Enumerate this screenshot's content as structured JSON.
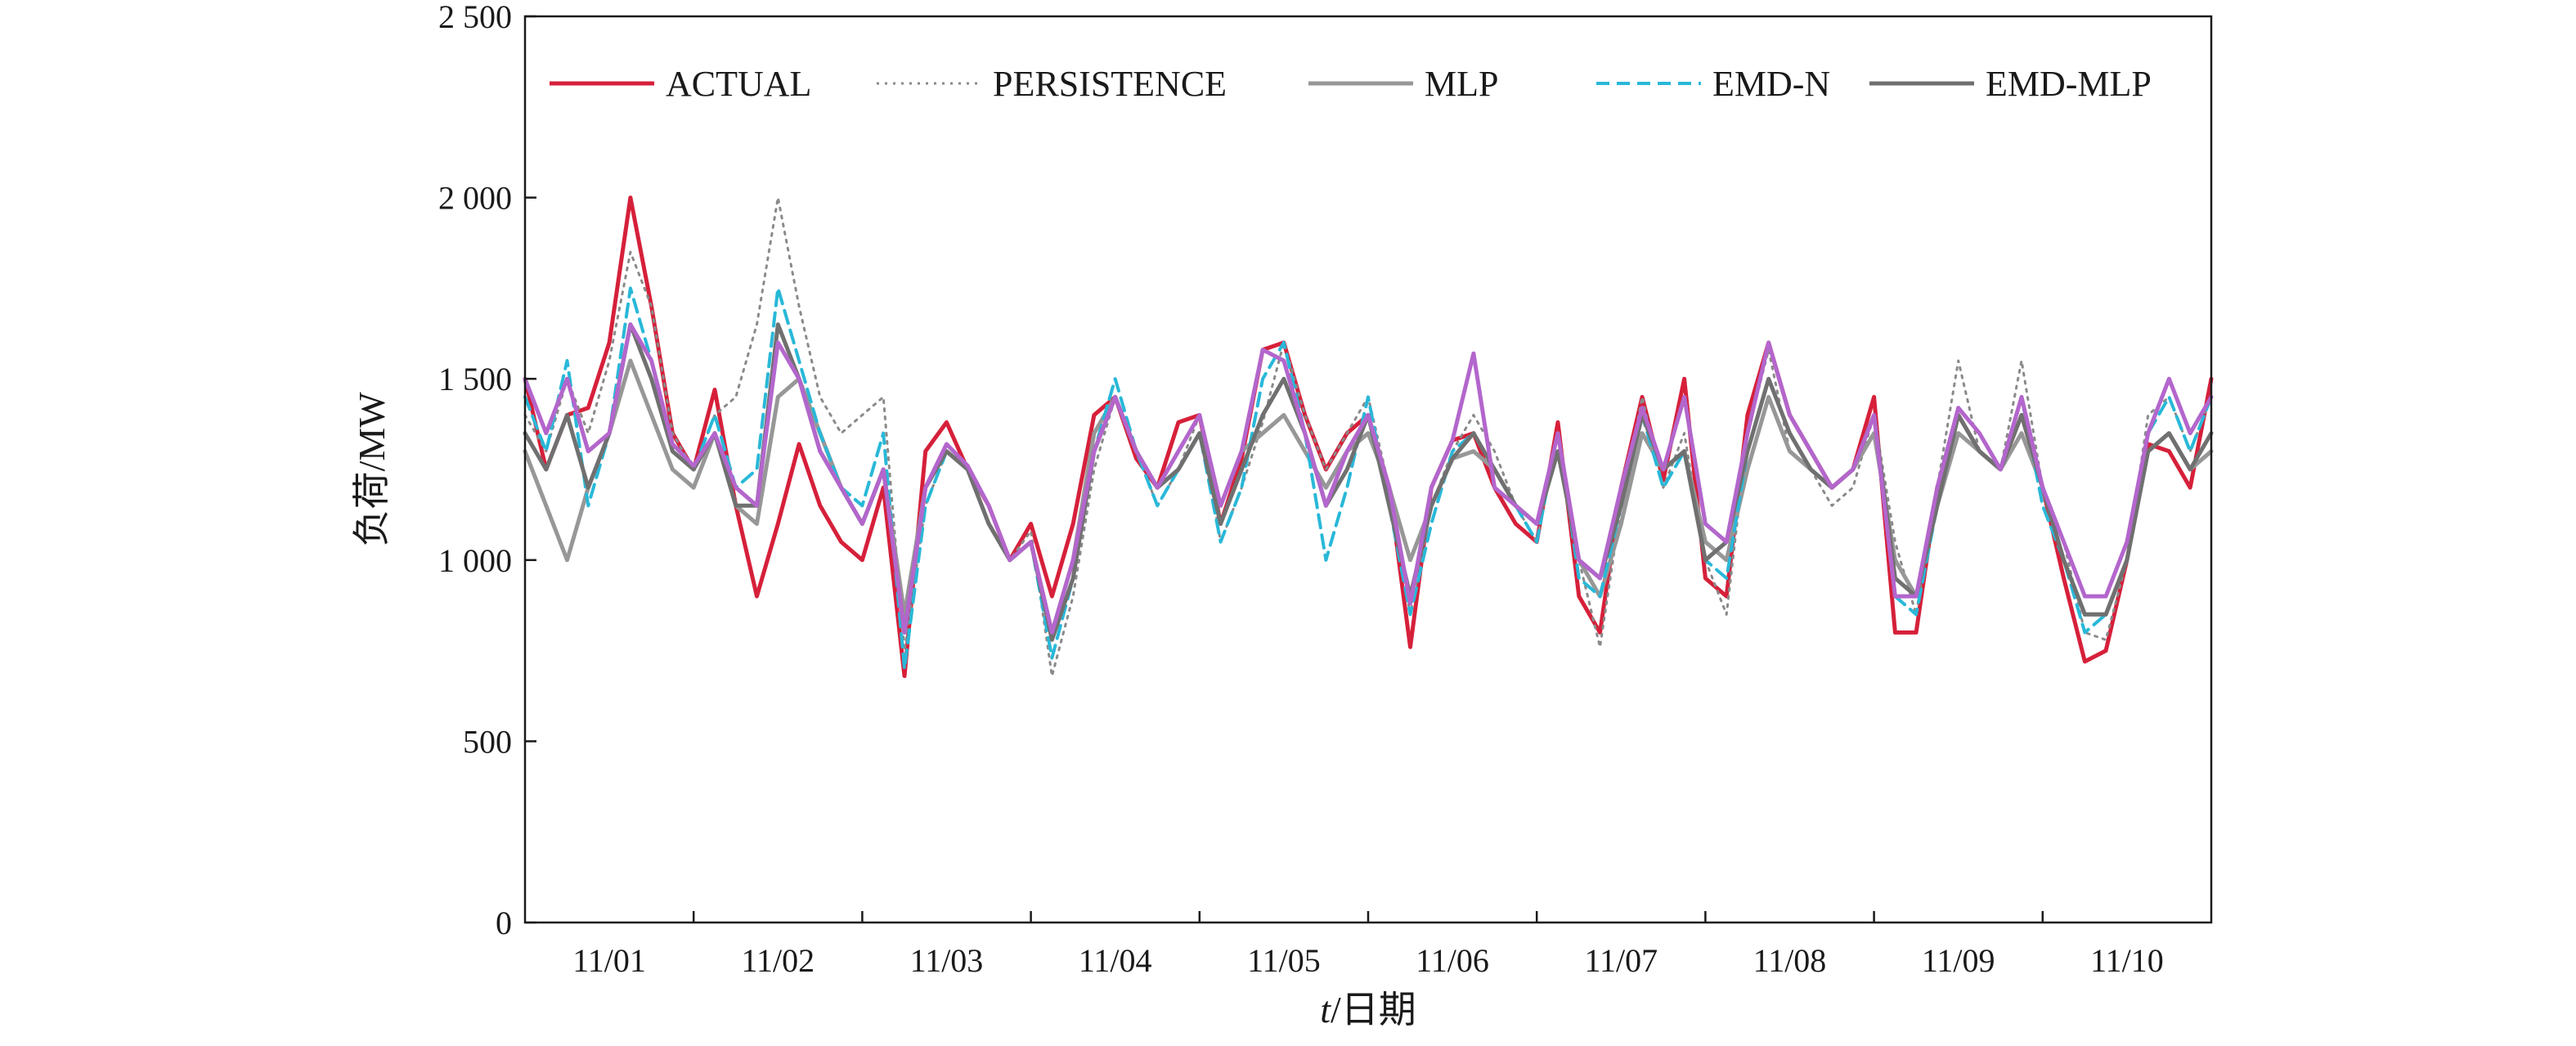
{
  "chart_data": {
    "type": "line",
    "title": "",
    "xlabel_italic": "t",
    "xlabel_rest": "/日期",
    "ylabel": "负荷/MW",
    "ylim": [
      0,
      2500
    ],
    "yticks": [
      0,
      500,
      1000,
      1500,
      2000,
      2500
    ],
    "ytick_labels": [
      "0",
      "500",
      "1 000",
      "1 500",
      "2 000",
      "2 500"
    ],
    "xlim": [
      0,
      10
    ],
    "x_categories": [
      "11/01",
      "11/02",
      "11/03",
      "11/04",
      "11/05",
      "11/06",
      "11/07",
      "11/08",
      "11/09",
      "11/10"
    ],
    "grid": false,
    "legend_position": "top",
    "x_unit": "day",
    "series": [
      {
        "name": "ACTUAL",
        "color": "#d6203a",
        "dash": "solid",
        "width": 5,
        "x": [
          0,
          0.125,
          0.25,
          0.375,
          0.5,
          0.625,
          0.75,
          0.875,
          1.0,
          1.125,
          1.25,
          1.375,
          1.5,
          1.625,
          1.75,
          1.875,
          2.0,
          2.125,
          2.25,
          2.375,
          2.5,
          2.625,
          2.75,
          2.875,
          3.0,
          3.125,
          3.25,
          3.375,
          3.5,
          3.625,
          3.75,
          3.875,
          4.0,
          4.125,
          4.25,
          4.375,
          4.5,
          4.625,
          4.75,
          4.875,
          5.0,
          5.125,
          5.25,
          5.375,
          5.5,
          5.625,
          5.75,
          5.875,
          6.0,
          6.125,
          6.25,
          6.375,
          6.5,
          6.625,
          6.75,
          6.875,
          7.0,
          7.125,
          7.25,
          7.375,
          7.5,
          7.625,
          7.75,
          7.875,
          8.0,
          8.125,
          8.25,
          8.375,
          8.5,
          8.625,
          8.75,
          8.875,
          9.0,
          9.125,
          9.25,
          9.375,
          9.5,
          9.625,
          9.75,
          9.875,
          10.0
        ],
        "y": [
          1500,
          1250,
          1400,
          1420,
          1600,
          2000,
          1700,
          1350,
          1250,
          1470,
          1150,
          900,
          1100,
          1320,
          1150,
          1050,
          1000,
          1200,
          680,
          1300,
          1380,
          1250,
          1150,
          1000,
          1100,
          900,
          1100,
          1400,
          1450,
          1280,
          1200,
          1380,
          1400,
          1100,
          1280,
          1580,
          1600,
          1400,
          1250,
          1350,
          1400,
          1200,
          760,
          1200,
          1330,
          1350,
          1200,
          1100,
          1050,
          1380,
          900,
          800,
          1200,
          1450,
          1220,
          1500,
          950,
          900,
          1400,
          1600,
          1400,
          1300,
          1200,
          1250,
          1450,
          800,
          800,
          1200,
          1400,
          1300,
          1250,
          1400,
          1200,
          950,
          720,
          750,
          1000,
          1320,
          1300,
          1200,
          1500
        ]
      },
      {
        "name": "PERSISTENCE",
        "color": "#8a8a8a",
        "dash": "dotted",
        "width": 3,
        "x": [
          0,
          0.125,
          0.25,
          0.375,
          0.5,
          0.625,
          0.75,
          0.875,
          1.0,
          1.125,
          1.25,
          1.375,
          1.5,
          1.625,
          1.75,
          1.875,
          2.0,
          2.125,
          2.25,
          2.375,
          2.5,
          2.625,
          2.75,
          2.875,
          3.0,
          3.125,
          3.25,
          3.375,
          3.5,
          3.625,
          3.75,
          3.875,
          4.0,
          4.125,
          4.25,
          4.375,
          4.5,
          4.625,
          4.75,
          4.875,
          5.0,
          5.125,
          5.25,
          5.375,
          5.5,
          5.625,
          5.75,
          5.875,
          6.0,
          6.125,
          6.25,
          6.375,
          6.5,
          6.625,
          6.75,
          6.875,
          7.0,
          7.125,
          7.25,
          7.375,
          7.5,
          7.625,
          7.75,
          7.875,
          8.0,
          8.125,
          8.25,
          8.375,
          8.5,
          8.625,
          8.75,
          8.875,
          9.0,
          9.125,
          9.25,
          9.375,
          9.5,
          9.625,
          9.75,
          9.875,
          10.0
        ],
        "y": [
          1400,
          1300,
          1500,
          1350,
          1550,
          1850,
          1700,
          1350,
          1250,
          1400,
          1450,
          1650,
          2000,
          1700,
          1450,
          1350,
          1400,
          1450,
          750,
          1150,
          1300,
          1250,
          1100,
          1000,
          1080,
          680,
          900,
          1250,
          1450,
          1300,
          1150,
          1250,
          1400,
          1050,
          1200,
          1380,
          1600,
          1400,
          1250,
          1350,
          1450,
          1200,
          850,
          1150,
          1300,
          1400,
          1300,
          1150,
          1050,
          1350,
          1000,
          760,
          1150,
          1450,
          1200,
          1350,
          1000,
          850,
          1350,
          1580,
          1300,
          1250,
          1150,
          1200,
          1400,
          1050,
          850,
          1200,
          1550,
          1300,
          1250,
          1550,
          1200,
          1050,
          800,
          780,
          1000,
          1400,
          1450,
          1300,
          1450
        ]
      },
      {
        "name": "MLP",
        "color": "#979797",
        "dash": "solid",
        "width": 5,
        "x": [
          0,
          0.125,
          0.25,
          0.375,
          0.5,
          0.625,
          0.75,
          0.875,
          1.0,
          1.125,
          1.25,
          1.375,
          1.5,
          1.625,
          1.75,
          1.875,
          2.0,
          2.125,
          2.25,
          2.375,
          2.5,
          2.625,
          2.75,
          2.875,
          3.0,
          3.125,
          3.25,
          3.375,
          3.5,
          3.625,
          3.75,
          3.875,
          4.0,
          4.125,
          4.25,
          4.375,
          4.5,
          4.625,
          4.75,
          4.875,
          5.0,
          5.125,
          5.25,
          5.375,
          5.5,
          5.625,
          5.75,
          5.875,
          6.0,
          6.125,
          6.25,
          6.375,
          6.5,
          6.625,
          6.75,
          6.875,
          7.0,
          7.125,
          7.25,
          7.375,
          7.5,
          7.625,
          7.75,
          7.875,
          8.0,
          8.125,
          8.25,
          8.375,
          8.5,
          8.625,
          8.75,
          8.875,
          9.0,
          9.125,
          9.25,
          9.375,
          9.5,
          9.625,
          9.75,
          9.875,
          10.0
        ],
        "y": [
          1300,
          1150,
          1000,
          1200,
          1350,
          1550,
          1400,
          1250,
          1200,
          1350,
          1150,
          1100,
          1450,
          1500,
          1350,
          1200,
          1100,
          1250,
          850,
          1200,
          1300,
          1250,
          1100,
          1000,
          1050,
          800,
          1000,
          1350,
          1450,
          1300,
          1200,
          1250,
          1350,
          1150,
          1300,
          1350,
          1400,
          1300,
          1200,
          1300,
          1350,
          1200,
          1000,
          1150,
          1280,
          1300,
          1250,
          1150,
          1100,
          1300,
          1000,
          900,
          1100,
          1350,
          1250,
          1300,
          1050,
          1000,
          1250,
          1450,
          1300,
          1250,
          1200,
          1250,
          1350,
          1000,
          900,
          1150,
          1350,
          1300,
          1250,
          1350,
          1200,
          1000,
          850,
          850,
          1000,
          1300,
          1350,
          1250,
          1300
        ]
      },
      {
        "name": "EMD-N",
        "color": "#29b8d8",
        "dash": "dashed",
        "width": 4,
        "x": [
          0,
          0.125,
          0.25,
          0.375,
          0.5,
          0.625,
          0.75,
          0.875,
          1.0,
          1.125,
          1.25,
          1.375,
          1.5,
          1.625,
          1.75,
          1.875,
          2.0,
          2.125,
          2.25,
          2.375,
          2.5,
          2.625,
          2.75,
          2.875,
          3.0,
          3.125,
          3.25,
          3.375,
          3.5,
          3.625,
          3.75,
          3.875,
          4.0,
          4.125,
          4.25,
          4.375,
          4.5,
          4.625,
          4.75,
          4.875,
          5.0,
          5.125,
          5.25,
          5.375,
          5.5,
          5.625,
          5.75,
          5.875,
          6.0,
          6.125,
          6.25,
          6.375,
          6.5,
          6.625,
          6.75,
          6.875,
          7.0,
          7.125,
          7.25,
          7.375,
          7.5,
          7.625,
          7.75,
          7.875,
          8.0,
          8.125,
          8.25,
          8.375,
          8.5,
          8.625,
          8.75,
          8.875,
          9.0,
          9.125,
          9.25,
          9.375,
          9.5,
          9.625,
          9.75,
          9.875,
          10.0
        ],
        "y": [
          1450,
          1300,
          1550,
          1150,
          1350,
          1750,
          1550,
          1300,
          1250,
          1400,
          1200,
          1250,
          1750,
          1550,
          1350,
          1200,
          1150,
          1350,
          700,
          1150,
          1300,
          1250,
          1150,
          1000,
          1050,
          730,
          950,
          1300,
          1500,
          1300,
          1150,
          1250,
          1350,
          1050,
          1200,
          1500,
          1600,
          1350,
          1000,
          1200,
          1450,
          1150,
          850,
          1100,
          1300,
          1350,
          1250,
          1150,
          1050,
          1350,
          950,
          900,
          1150,
          1400,
          1200,
          1300,
          1000,
          950,
          1300,
          1500,
          1350,
          1250,
          1200,
          1250,
          1400,
          900,
          850,
          1150,
          1400,
          1300,
          1250,
          1450,
          1150,
          1000,
          800,
          850,
          1000,
          1350,
          1450,
          1300,
          1450
        ]
      },
      {
        "name": "EMD-MLP",
        "color": "#707070",
        "dash": "solid",
        "width": 5,
        "x": [
          0,
          0.125,
          0.25,
          0.375,
          0.5,
          0.625,
          0.75,
          0.875,
          1.0,
          1.125,
          1.25,
          1.375,
          1.5,
          1.625,
          1.75,
          1.875,
          2.0,
          2.125,
          2.25,
          2.375,
          2.5,
          2.625,
          2.75,
          2.875,
          3.0,
          3.125,
          3.25,
          3.375,
          3.5,
          3.625,
          3.75,
          3.875,
          4.0,
          4.125,
          4.25,
          4.375,
          4.5,
          4.625,
          4.75,
          4.875,
          5.0,
          5.125,
          5.25,
          5.375,
          5.5,
          5.625,
          5.75,
          5.875,
          6.0,
          6.125,
          6.25,
          6.375,
          6.5,
          6.625,
          6.75,
          6.875,
          7.0,
          7.125,
          7.25,
          7.375,
          7.5,
          7.625,
          7.75,
          7.875,
          8.0,
          8.125,
          8.25,
          8.375,
          8.5,
          8.625,
          8.75,
          8.875,
          9.0,
          9.125,
          9.25,
          9.375,
          9.5,
          9.625,
          9.75,
          9.875,
          10.0
        ],
        "y": [
          1350,
          1250,
          1400,
          1200,
          1350,
          1650,
          1500,
          1300,
          1250,
          1350,
          1150,
          1150,
          1650,
          1500,
          1300,
          1200,
          1100,
          1250,
          800,
          1200,
          1300,
          1250,
          1100,
          1000,
          1050,
          780,
          950,
          1300,
          1450,
          1300,
          1200,
          1250,
          1350,
          1100,
          1250,
          1400,
          1500,
          1350,
          1150,
          1250,
          1400,
          1150,
          900,
          1150,
          1280,
          1350,
          1250,
          1150,
          1100,
          1300,
          1000,
          950,
          1150,
          1400,
          1250,
          1300,
          1000,
          1050,
          1300,
          1500,
          1350,
          1250,
          1200,
          1250,
          1400,
          950,
          900,
          1150,
          1400,
          1300,
          1250,
          1400,
          1200,
          1000,
          850,
          850,
          1000,
          1300,
          1350,
          1250,
          1350
        ]
      },
      {
        "name": "",
        "color": "#b366cc",
        "dash": "solid",
        "width": 5,
        "x": [
          0,
          0.125,
          0.25,
          0.375,
          0.5,
          0.625,
          0.75,
          0.875,
          1.0,
          1.125,
          1.25,
          1.375,
          1.5,
          1.625,
          1.75,
          1.875,
          2.0,
          2.125,
          2.25,
          2.375,
          2.5,
          2.625,
          2.75,
          2.875,
          3.0,
          3.125,
          3.25,
          3.375,
          3.5,
          3.625,
          3.75,
          3.875,
          4.0,
          4.125,
          4.25,
          4.375,
          4.5,
          4.625,
          4.75,
          4.875,
          5.0,
          5.125,
          5.25,
          5.375,
          5.5,
          5.625,
          5.75,
          5.875,
          6.0,
          6.125,
          6.25,
          6.375,
          6.5,
          6.625,
          6.75,
          6.875,
          7.0,
          7.125,
          7.25,
          7.375,
          7.5,
          7.625,
          7.75,
          7.875,
          8.0,
          8.125,
          8.25,
          8.375,
          8.5,
          8.625,
          8.75,
          8.875,
          9.0,
          9.125,
          9.25,
          9.375,
          9.5,
          9.625,
          9.75,
          9.875,
          10.0
        ],
        "y": [
          1500,
          1350,
          1500,
          1300,
          1350,
          1650,
          1550,
          1320,
          1260,
          1350,
          1200,
          1150,
          1600,
          1500,
          1300,
          1200,
          1100,
          1250,
          800,
          1200,
          1320,
          1260,
          1150,
          1000,
          1050,
          800,
          1000,
          1300,
          1450,
          1300,
          1200,
          1300,
          1400,
          1150,
          1300,
          1580,
          1550,
          1350,
          1150,
          1300,
          1400,
          1200,
          880,
          1200,
          1330,
          1570,
          1200,
          1150,
          1100,
          1350,
          1000,
          950,
          1200,
          1420,
          1250,
          1450,
          1100,
          1050,
          1350,
          1600,
          1400,
          1300,
          1200,
          1250,
          1400,
          900,
          900,
          1200,
          1420,
          1350,
          1250,
          1450,
          1200,
          1050,
          900,
          900,
          1050,
          1350,
          1500,
          1350,
          1450
        ]
      }
    ]
  }
}
